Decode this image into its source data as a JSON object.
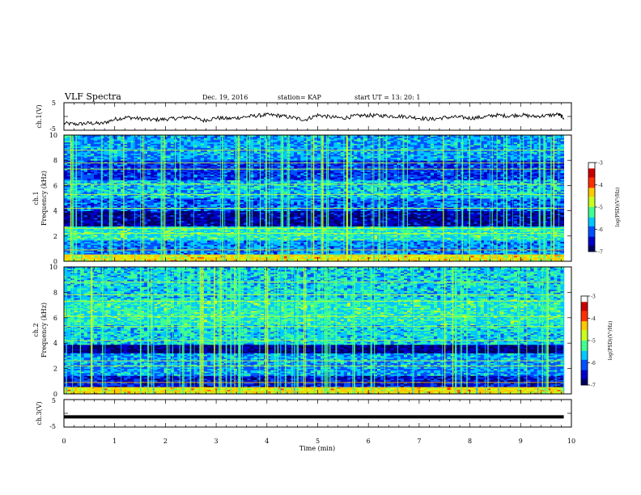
{
  "header": {
    "title": "VLF Spectra",
    "date": "Dec. 19, 2016",
    "station": "station= KAP",
    "start": "start  UT  =   13: 20: 1"
  },
  "colors": {
    "waveform": "#000000",
    "colormap": [
      "#000060",
      "#0000c8",
      "#0050ff",
      "#00c8ff",
      "#40ff90",
      "#c8ff20",
      "#ffc800",
      "#ff3000",
      "#c80000",
      "#ffffff"
    ]
  },
  "chart_data": [
    {
      "id": "ch1-waveform",
      "type": "line",
      "ylabel": "ch.1(V)",
      "ylim": [
        -5,
        5
      ],
      "yticks": [
        "5",
        "-5"
      ],
      "xlim": [
        0,
        10
      ],
      "series": [
        {
          "x": [
            0,
            0.25,
            0.5,
            0.75,
            1.0,
            1.25,
            1.5,
            1.75,
            2.0,
            2.25,
            2.5,
            2.75,
            3.0,
            3.25,
            3.5,
            3.75,
            4.0,
            4.25,
            4.5,
            4.75,
            5.0,
            5.25,
            5.5,
            5.75,
            6.0,
            6.25,
            6.5,
            6.75,
            7.0,
            7.25,
            7.5,
            7.75,
            8.0,
            8.25,
            8.5,
            8.75,
            9.0,
            9.25,
            9.5,
            9.75,
            9.85
          ],
          "y": [
            -2.5,
            -2.8,
            -2.4,
            -2.6,
            -1.0,
            -0.3,
            -0.8,
            -1.2,
            -1.0,
            -0.6,
            -0.2,
            -1.5,
            -0.5,
            -0.8,
            -0.3,
            0.2,
            0.6,
            0.3,
            -0.4,
            -1.2,
            0.5,
            -0.2,
            -0.6,
            0.2,
            0.4,
            0.3,
            0.1,
            0.0,
            -0.6,
            -1.0,
            -0.4,
            -0.2,
            -0.6,
            -0.3,
            0.5,
            0.2,
            0.6,
            0.0,
            0.3,
            0.8,
            -0.6
          ]
        }
      ]
    },
    {
      "id": "ch1-spectrogram",
      "type": "heatmap",
      "ylabel_line1": "ch.1",
      "ylabel_line2": "Frequency (kHz)",
      "ylim": [
        0,
        10
      ],
      "yticks": [
        "0",
        "2",
        "4",
        "6",
        "8",
        "10"
      ],
      "xlim": [
        0,
        10
      ],
      "colorbar": {
        "label": "log(PSD)(V²/Hz)",
        "range": [
          -7,
          -3
        ],
        "ticks": [
          "-3",
          "-4",
          "-5",
          "-6",
          "-7"
        ]
      }
    },
    {
      "id": "ch2-spectrogram",
      "type": "heatmap",
      "ylabel_line1": "ch.2",
      "ylabel_line2": "Frequency (kHz)",
      "ylim": [
        0,
        10
      ],
      "yticks": [
        "0",
        "2",
        "4",
        "6",
        "8",
        "10"
      ],
      "xlim": [
        0,
        10
      ],
      "colorbar": {
        "label": "log(PSD)(V²/Hz)",
        "range": [
          -7,
          -3
        ],
        "ticks": [
          "-3",
          "-4",
          "-5",
          "-6",
          "-7"
        ]
      }
    },
    {
      "id": "ch3-waveform",
      "type": "line",
      "ylabel": "ch.3(V)",
      "ylim": [
        -5,
        5
      ],
      "yticks": [
        "5",
        "-5"
      ],
      "xlim": [
        0,
        10
      ],
      "xlabel": "Time  (min)",
      "xticks": [
        "0",
        "1",
        "2",
        "3",
        "4",
        "5",
        "6",
        "7",
        "8",
        "9",
        "10"
      ],
      "series": [
        {
          "x": [
            0,
            9.85
          ],
          "y": [
            -1.3,
            -1.3
          ]
        }
      ]
    }
  ]
}
